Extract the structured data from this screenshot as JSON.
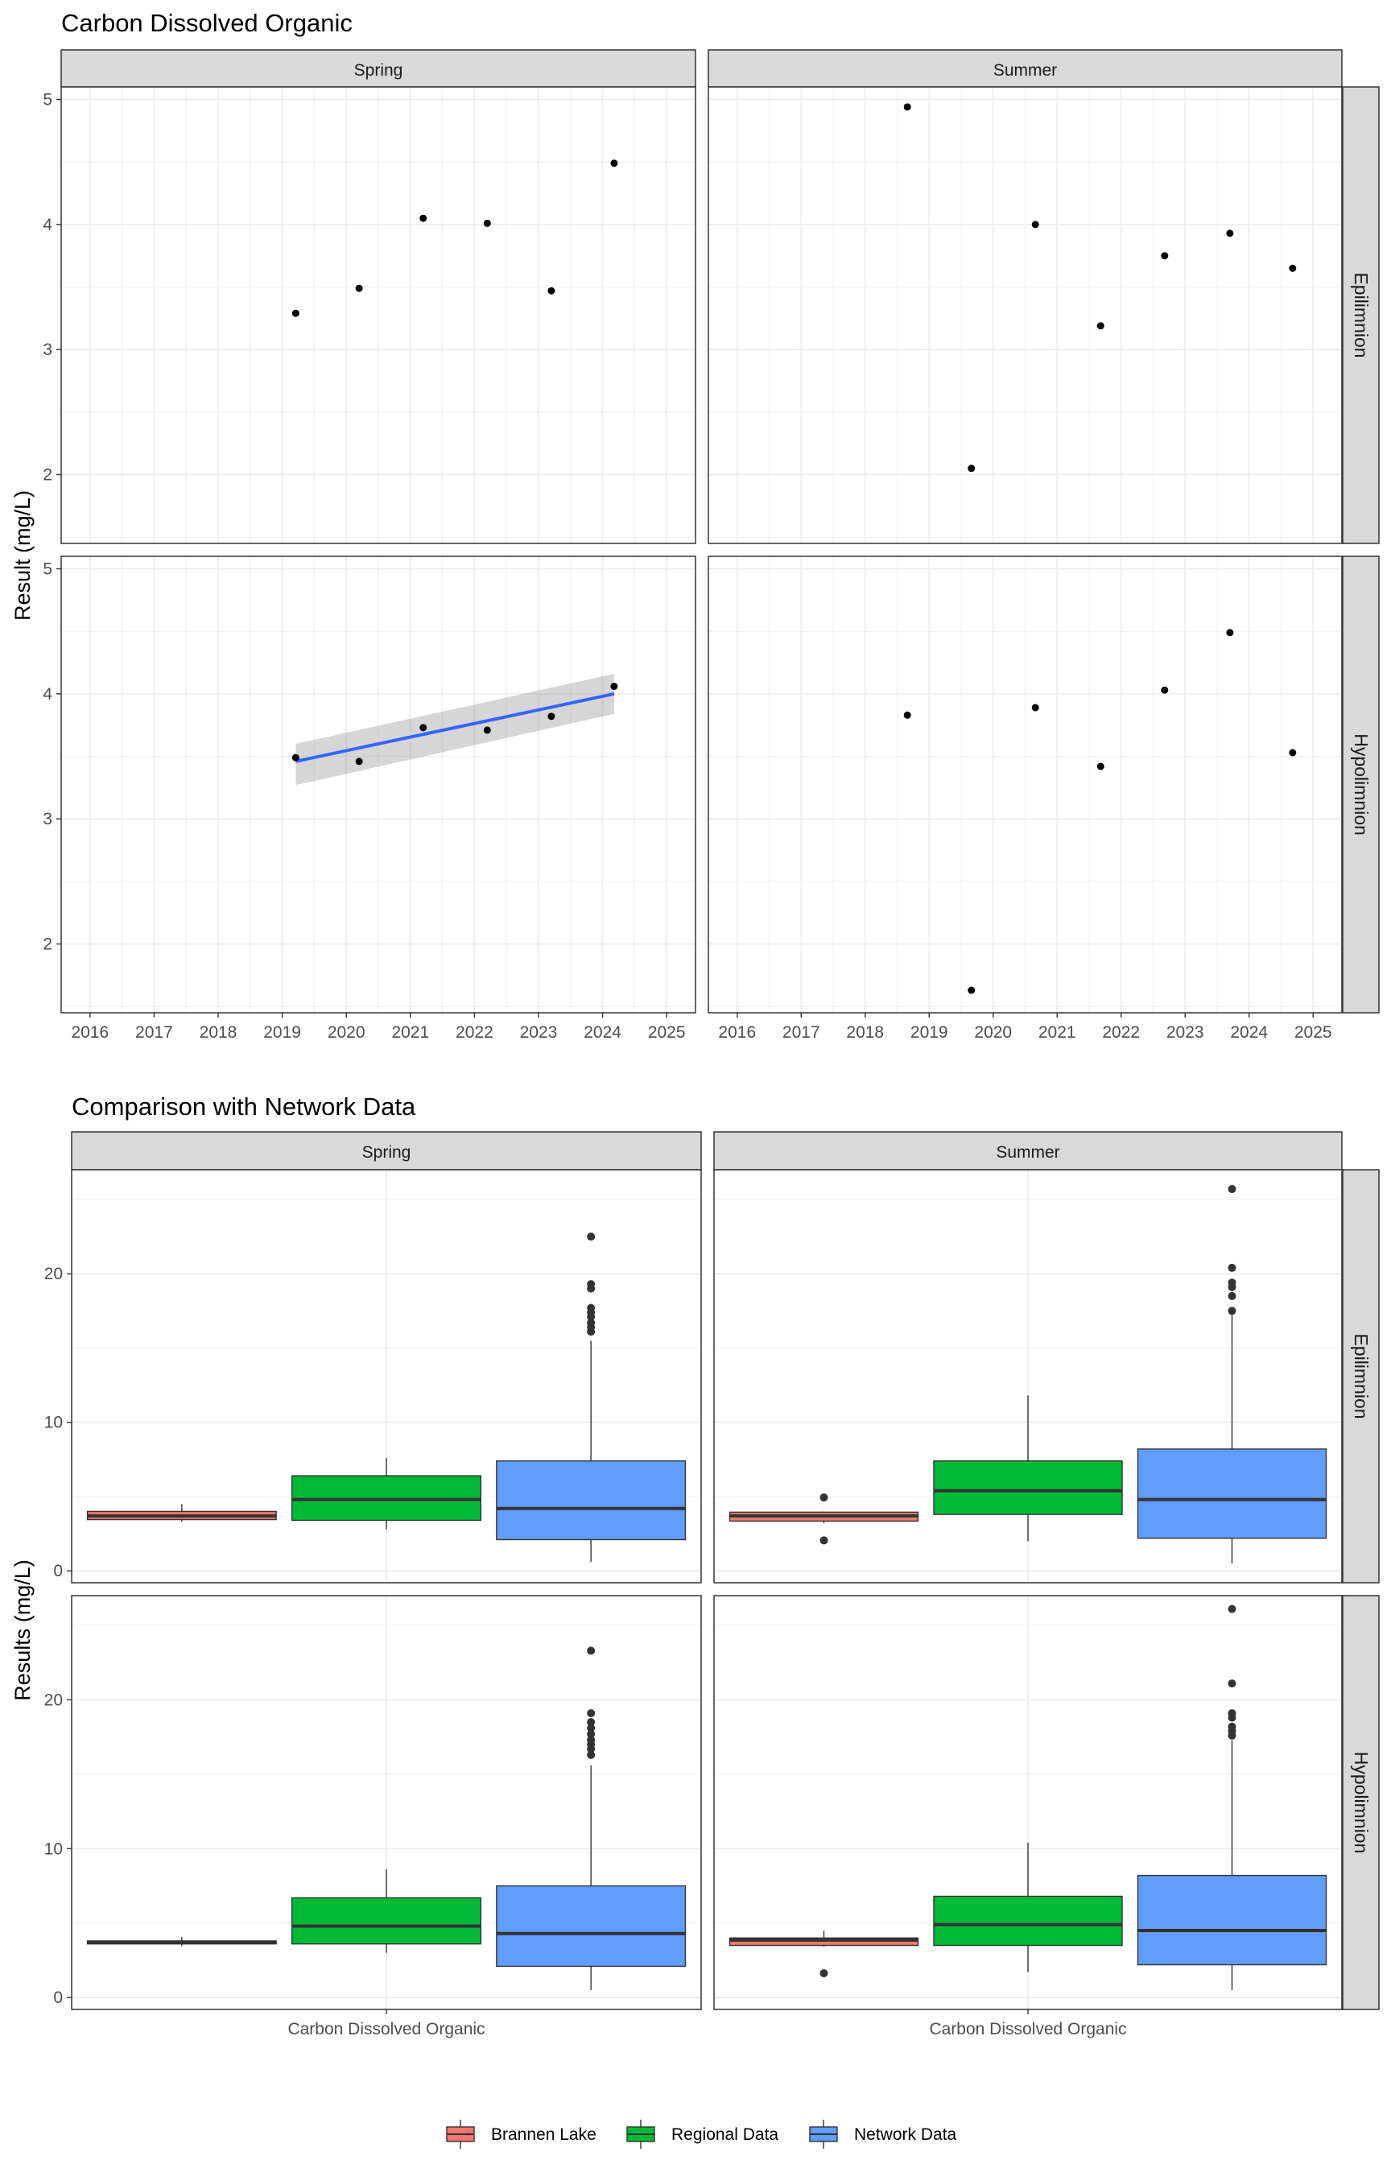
{
  "chart_data": [
    {
      "type": "scatter",
      "title": "Carbon Dissolved Organic",
      "ylabel": "Result (mg/L)",
      "columns": [
        "Spring",
        "Summer"
      ],
      "rows": [
        "Epilimnion",
        "Hypolimnion"
      ],
      "x_ticks": [
        "2016",
        "2017",
        "2018",
        "2019",
        "2020",
        "2021",
        "2022",
        "2023",
        "2024",
        "2025"
      ],
      "y_ticks": [
        "2",
        "3",
        "4",
        "5"
      ],
      "xlim": [
        2015.55,
        2025.45
      ],
      "ylim": [
        1.45,
        5.1
      ],
      "grid": true,
      "panels": [
        {
          "column": "Spring",
          "row": "Epilimnion",
          "x": [
            2019.21,
            2020.2,
            2021.2,
            2022.2,
            2023.2,
            2024.18
          ],
          "y": [
            3.29,
            3.49,
            4.05,
            4.01,
            3.47,
            4.49
          ]
        },
        {
          "column": "Summer",
          "row": "Epilimnion",
          "x": [
            2018.66,
            2019.66,
            2020.66,
            2021.68,
            2022.68,
            2023.7,
            2024.68
          ],
          "y": [
            4.94,
            2.05,
            4.0,
            3.19,
            3.75,
            3.93,
            3.65
          ]
        },
        {
          "column": "Spring",
          "row": "Hypolimnion",
          "x": [
            2019.21,
            2020.2,
            2021.2,
            2022.2,
            2023.2,
            2024.18
          ],
          "y": [
            3.49,
            3.46,
            3.73,
            3.71,
            3.82,
            4.06
          ],
          "trend": {
            "x": [
              2019.21,
              2024.18
            ],
            "y": [
              3.46,
              4.0
            ],
            "ci_lower": [
              3.27,
              3.84
            ],
            "ci_upper": [
              3.6,
              4.16
            ]
          }
        },
        {
          "column": "Summer",
          "row": "Hypolimnion",
          "x": [
            2018.66,
            2019.66,
            2020.66,
            2021.68,
            2022.68,
            2023.7,
            2024.68
          ],
          "y": [
            3.83,
            1.63,
            3.89,
            3.42,
            4.03,
            4.49,
            3.53
          ]
        }
      ]
    },
    {
      "type": "box",
      "title": "Comparison with Network Data",
      "ylabel": "Results (mg/L)",
      "xlabel_category": "Carbon Dissolved Organic",
      "columns": [
        "Spring",
        "Summer"
      ],
      "rows": [
        "Epilimnion",
        "Hypolimnion"
      ],
      "y_ticks": [
        "0",
        "10",
        "20"
      ],
      "ylim": [
        -0.8,
        27
      ],
      "grid": true,
      "legend": {
        "position": "bottom",
        "entries": [
          {
            "name": "Brannen Lake",
            "color": "#f8766d"
          },
          {
            "name": "Regional Data",
            "color": "#00ba38"
          },
          {
            "name": "Network Data",
            "color": "#619cff"
          }
        ]
      },
      "panels": [
        {
          "column": "Spring",
          "row": "Epilimnion",
          "boxes": [
            {
              "group": "Brannen Lake",
              "min": 3.3,
              "q1": 3.45,
              "median": 3.7,
              "q3": 4.0,
              "max": 4.5,
              "outliers": []
            },
            {
              "group": "Regional Data",
              "min": 2.8,
              "q1": 3.4,
              "median": 4.8,
              "q3": 6.4,
              "max": 7.6,
              "outliers": []
            },
            {
              "group": "Network Data",
              "min": 0.6,
              "q1": 2.1,
              "median": 4.2,
              "q3": 7.4,
              "max": 15.5,
              "outliers": [
                16.1,
                16.4,
                16.7,
                17.1,
                17.4,
                17.7,
                19.0,
                19.3,
                22.5
              ]
            }
          ]
        },
        {
          "column": "Summer",
          "row": "Epilimnion",
          "boxes": [
            {
              "group": "Brannen Lake",
              "min": 3.2,
              "q1": 3.35,
              "median": 3.7,
              "q3": 3.95,
              "max": 4.0,
              "outliers": [
                2.05,
                4.94
              ]
            },
            {
              "group": "Regional Data",
              "min": 2.0,
              "q1": 3.8,
              "median": 5.4,
              "q3": 7.4,
              "max": 11.8,
              "outliers": []
            },
            {
              "group": "Network Data",
              "min": 0.5,
              "q1": 2.2,
              "median": 4.8,
              "q3": 8.2,
              "max": 17.3,
              "outliers": [
                17.5,
                18.5,
                19.1,
                19.4,
                20.4,
                25.7
              ]
            }
          ]
        },
        {
          "column": "Spring",
          "row": "Hypolimnion",
          "boxes": [
            {
              "group": "Brannen Lake",
              "min": 3.46,
              "q1": 3.6,
              "median": 3.72,
              "q3": 3.8,
              "max": 4.06,
              "outliers": []
            },
            {
              "group": "Regional Data",
              "min": 3.0,
              "q1": 3.6,
              "median": 4.8,
              "q3": 6.7,
              "max": 8.6,
              "outliers": []
            },
            {
              "group": "Network Data",
              "min": 0.5,
              "q1": 2.1,
              "median": 4.3,
              "q3": 7.5,
              "max": 15.6,
              "outliers": [
                16.3,
                16.7,
                17.0,
                17.3,
                17.7,
                18.1,
                18.5,
                19.1,
                23.3
              ]
            }
          ]
        },
        {
          "column": "Summer",
          "row": "Hypolimnion",
          "boxes": [
            {
              "group": "Brannen Lake",
              "min": 3.42,
              "q1": 3.5,
              "median": 3.86,
              "q3": 4.0,
              "max": 4.49,
              "outliers": [
                1.63
              ]
            },
            {
              "group": "Regional Data",
              "min": 1.7,
              "q1": 3.5,
              "median": 4.9,
              "q3": 6.8,
              "max": 10.4,
              "outliers": []
            },
            {
              "group": "Network Data",
              "min": 0.5,
              "q1": 2.2,
              "median": 4.5,
              "q3": 8.2,
              "max": 17.3,
              "outliers": [
                17.6,
                17.9,
                18.2,
                18.8,
                19.1,
                21.1,
                26.1
              ]
            }
          ]
        }
      ]
    }
  ]
}
